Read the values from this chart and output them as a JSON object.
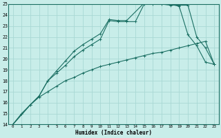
{
  "xlabel": "Humidex (Indice chaleur)",
  "bg_color": "#c8ede9",
  "grid_color": "#a8d8d4",
  "line_color": "#1a6e62",
  "xlim": [
    -0.5,
    23.5
  ],
  "ylim": [
    14,
    25
  ],
  "xticks": [
    0,
    1,
    2,
    3,
    4,
    5,
    6,
    7,
    8,
    9,
    10,
    11,
    12,
    13,
    14,
    15,
    16,
    17,
    18,
    19,
    20,
    21,
    22,
    23
  ],
  "yticks": [
    14,
    15,
    16,
    17,
    18,
    19,
    20,
    21,
    22,
    23,
    24,
    25
  ],
  "line1_x": [
    0,
    1,
    2,
    3,
    4,
    5,
    6,
    7,
    8,
    9,
    10,
    11,
    12,
    13,
    14,
    15,
    16,
    17,
    18,
    19,
    20,
    21,
    22,
    23
  ],
  "line1_y": [
    14.0,
    15.0,
    15.8,
    16.5,
    17.0,
    17.5,
    18.0,
    18.3,
    18.7,
    19.0,
    19.3,
    19.5,
    19.7,
    19.9,
    20.1,
    20.3,
    20.5,
    20.6,
    20.8,
    21.0,
    21.2,
    21.4,
    21.6,
    19.5
  ],
  "line2_x": [
    0,
    2,
    3,
    4,
    5,
    6,
    7,
    8,
    9,
    10,
    11,
    12,
    13,
    14,
    15,
    16,
    17,
    18,
    19,
    20,
    21,
    22,
    23
  ],
  "line2_y": [
    14.0,
    15.8,
    16.6,
    18.0,
    18.7,
    19.4,
    20.2,
    20.8,
    21.3,
    21.8,
    23.5,
    23.4,
    23.4,
    23.4,
    25.0,
    25.0,
    25.0,
    24.9,
    24.9,
    24.9,
    22.0,
    21.0,
    19.5
  ],
  "line3_x": [
    0,
    2,
    3,
    4,
    5,
    6,
    7,
    8,
    9,
    10,
    11,
    12,
    13,
    15,
    16,
    17,
    18,
    19,
    20,
    21,
    22,
    23
  ],
  "line3_y": [
    14.0,
    15.8,
    16.6,
    18.0,
    18.9,
    19.8,
    20.7,
    21.3,
    21.8,
    22.3,
    23.6,
    23.5,
    23.5,
    25.1,
    25.1,
    25.1,
    25.0,
    24.8,
    22.2,
    21.2,
    19.7,
    19.5
  ]
}
